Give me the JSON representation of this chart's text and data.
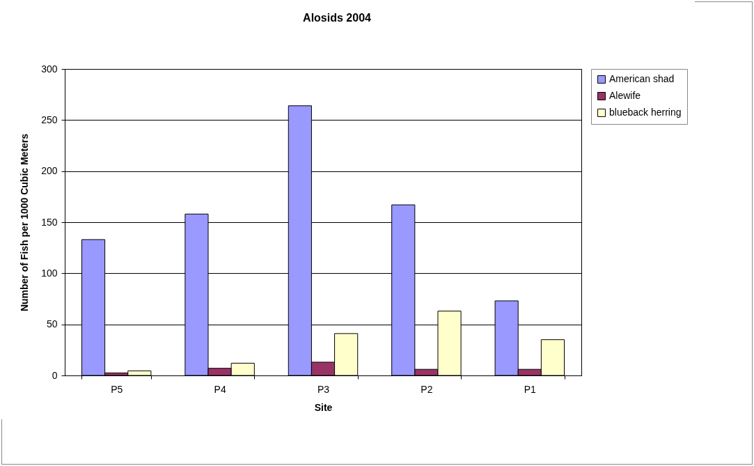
{
  "chart_data": {
    "type": "bar",
    "title": "Alosids 2004",
    "xlabel": "Site",
    "ylabel": "Number of Fish per 1000 Cubic Meters",
    "categories": [
      "P5",
      "P4",
      "P3",
      "P2",
      "P1"
    ],
    "series": [
      {
        "name": "American shad",
        "color": "#9999ff",
        "values": [
          133,
          158,
          264,
          167,
          73
        ]
      },
      {
        "name": "Alewife",
        "color": "#993366",
        "values": [
          2.5,
          7,
          13,
          6,
          6
        ]
      },
      {
        "name": "blueback herring",
        "color": "#ffffcc",
        "values": [
          4.5,
          12,
          41,
          63,
          35
        ]
      }
    ],
    "ylim": [
      0,
      300
    ],
    "yticks": [
      0,
      50,
      100,
      150,
      200,
      250,
      300
    ],
    "grid": "y",
    "legend": "right"
  }
}
